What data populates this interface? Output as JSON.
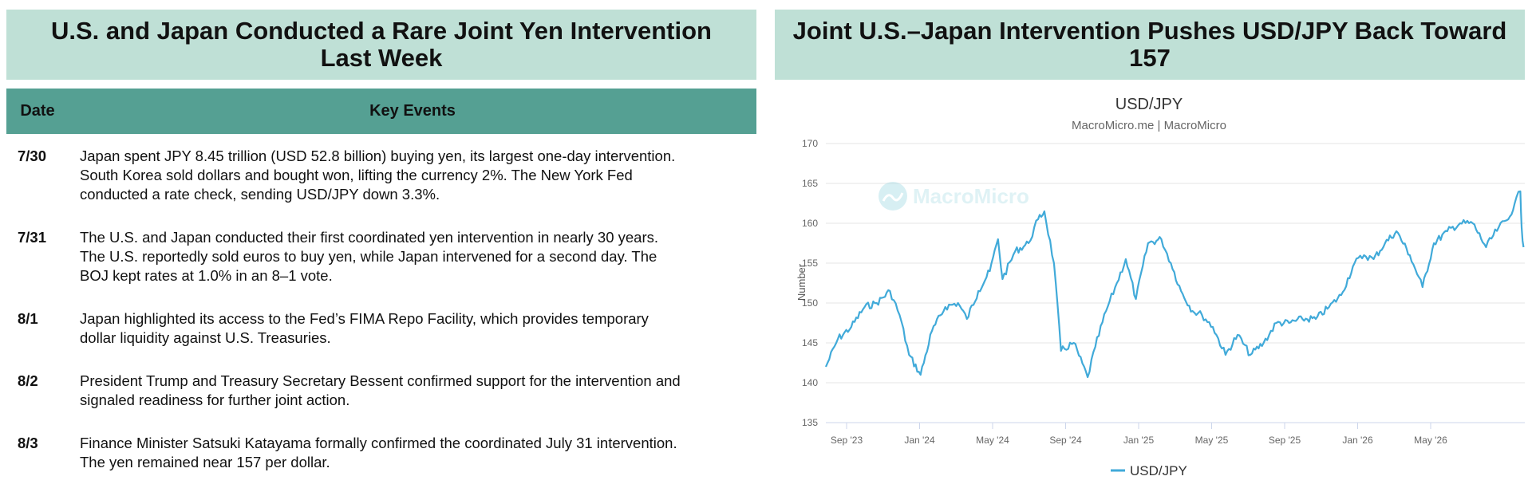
{
  "left": {
    "title": "U.S. and Japan Conducted a Rare Joint Yen Intervention Last Week",
    "header": {
      "date": "Date",
      "events": "Key Events"
    },
    "events": [
      {
        "date": "7/30",
        "lines": [
          "Japan spent JPY 8.45 trillion (USD 52.8 billion) buying yen, its largest one-day intervention.",
          "South Korea sold dollars and bought won, lifting the currency 2%. The New York Fed",
          "conducted a rate check, sending USD/JPY down 3.3%."
        ]
      },
      {
        "date": "7/31",
        "lines": [
          "The U.S. and Japan conducted their first coordinated yen intervention in nearly 30 years.",
          "The U.S. reportedly sold euros to buy yen, while Japan intervened for a second day. The",
          "BOJ kept rates at 1.0% in an 8–1 vote."
        ]
      },
      {
        "date": "8/1",
        "lines": [
          "Japan highlighted its access to the Fed’s FIMA Repo Facility, which provides temporary",
          "dollar liquidity against U.S. Treasuries."
        ]
      },
      {
        "date": "8/2",
        "lines": [
          "President Trump and Treasury Secretary Bessent confirmed support for the intervention and",
          "signaled readiness for further joint action."
        ]
      },
      {
        "date": "8/3",
        "lines": [
          "Finance Minister Satsuki Katayama formally confirmed the coordinated July 31 intervention.",
          "The yen remained near 157 per dollar."
        ]
      }
    ]
  },
  "right": {
    "title": "Joint U.S.–Japan Intervention Pushes USD/JPY Back Toward 157"
  },
  "chart_data": {
    "type": "line",
    "title": "USD/JPY",
    "subtitle": "MacroMicro.me | MacroMicro",
    "watermark": "MacroMicro",
    "ylabel": "Number",
    "xlabel": "",
    "ylim": [
      135,
      170
    ],
    "y_ticks": [
      135,
      140,
      145,
      150,
      155,
      160,
      165,
      170
    ],
    "x_tick_labels": [
      "Sep '23",
      "Jan '24",
      "May '24",
      "Sep '24",
      "Jan '25",
      "May '25",
      "Sep '25",
      "Jan '26",
      "May '26"
    ],
    "xlim": [
      "2023-08-01",
      "2026-08-05"
    ],
    "grid": true,
    "legend": "bottom-center",
    "color": "#41aad9",
    "series": [
      {
        "name": "USD/JPY",
        "x": [
          "2023-08-01",
          "2023-08-20",
          "2023-09-10",
          "2023-10-01",
          "2023-10-20",
          "2023-11-10",
          "2023-11-25",
          "2023-12-10",
          "2023-12-28",
          "2024-01-15",
          "2024-02-05",
          "2024-02-25",
          "2024-03-10",
          "2024-03-28",
          "2024-04-15",
          "2024-04-28",
          "2024-05-05",
          "2024-05-25",
          "2024-06-15",
          "2024-06-30",
          "2024-07-10",
          "2024-07-25",
          "2024-08-05",
          "2024-08-25",
          "2024-09-16",
          "2024-09-28",
          "2024-10-15",
          "2024-11-01",
          "2024-11-15",
          "2024-12-01",
          "2024-12-20",
          "2025-01-10",
          "2025-01-25",
          "2025-02-10",
          "2025-02-28",
          "2025-03-15",
          "2025-04-01",
          "2025-04-21",
          "2025-05-10",
          "2025-05-30",
          "2025-06-20",
          "2025-07-10",
          "2025-07-30",
          "2025-08-20",
          "2025-09-10",
          "2025-10-01",
          "2025-10-20",
          "2025-11-10",
          "2025-11-25",
          "2025-12-10",
          "2025-12-28",
          "2026-01-15",
          "2026-02-05",
          "2026-02-25",
          "2026-03-15",
          "2026-04-05",
          "2026-04-25",
          "2026-05-15",
          "2026-06-05",
          "2026-06-25",
          "2026-07-10",
          "2026-07-20",
          "2026-07-29",
          "2026-07-31",
          "2026-08-03"
        ],
        "values": [
          142.0,
          145.5,
          147.0,
          149.5,
          150.0,
          151.5,
          148.5,
          143.5,
          141.0,
          146.5,
          149.5,
          150.0,
          148.0,
          151.5,
          154.0,
          158.0,
          153.0,
          156.5,
          157.5,
          160.5,
          161.5,
          155.0,
          144.0,
          145.0,
          140.7,
          144.5,
          149.0,
          152.5,
          155.5,
          150.5,
          157.5,
          158.0,
          155.0,
          151.5,
          149.0,
          148.5,
          147.0,
          143.5,
          146.0,
          143.5,
          145.0,
          147.5,
          147.5,
          148.0,
          148.0,
          149.5,
          151.0,
          155.0,
          156.0,
          155.5,
          157.5,
          159.0,
          156.0,
          152.0,
          157.5,
          159.0,
          160.0,
          160.0,
          157.0,
          159.5,
          160.5,
          162.5,
          164.0,
          159.5,
          157.0
        ]
      }
    ]
  }
}
